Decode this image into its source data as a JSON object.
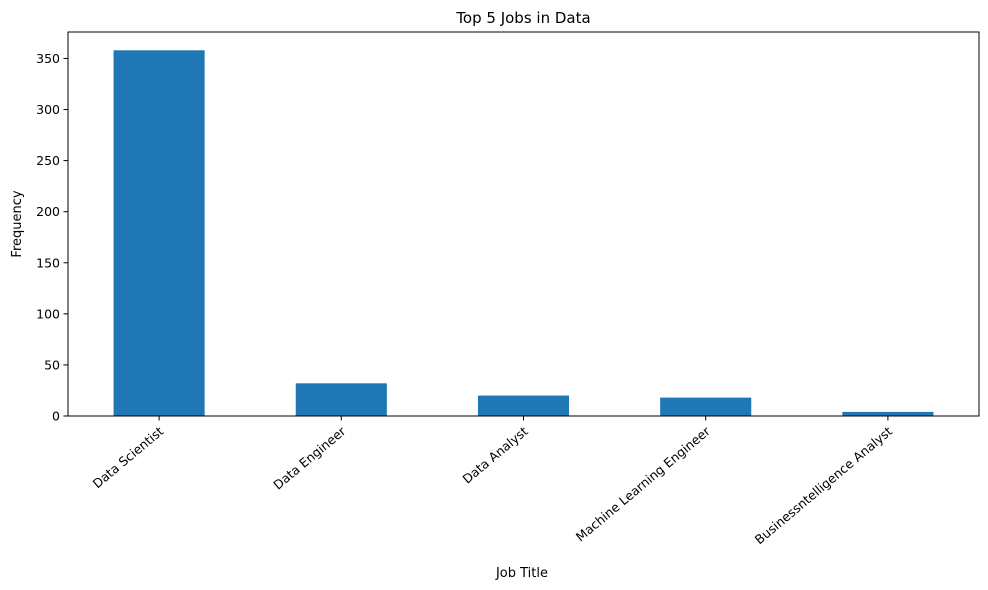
{
  "chart_data": {
    "type": "bar",
    "title": "Top 5 Jobs in Data",
    "xlabel": "Job Title",
    "ylabel": "Frequency",
    "categories": [
      "Data Scientist",
      "Data Engineer",
      "Data Analyst",
      "Machine Learning Engineer",
      "Businessntelligence Analyst"
    ],
    "values": [
      358,
      32,
      20,
      18,
      4
    ],
    "ylim": [
      0,
      375.9
    ],
    "yticks": [
      0,
      50,
      100,
      150,
      200,
      250,
      300,
      350
    ],
    "ytick_labels": [
      "0",
      "50",
      "100",
      "150",
      "200",
      "250",
      "300",
      "350"
    ],
    "xtick_rotation": 40,
    "bar_color": "#1f77b4",
    "grid": false,
    "legend": "none"
  }
}
